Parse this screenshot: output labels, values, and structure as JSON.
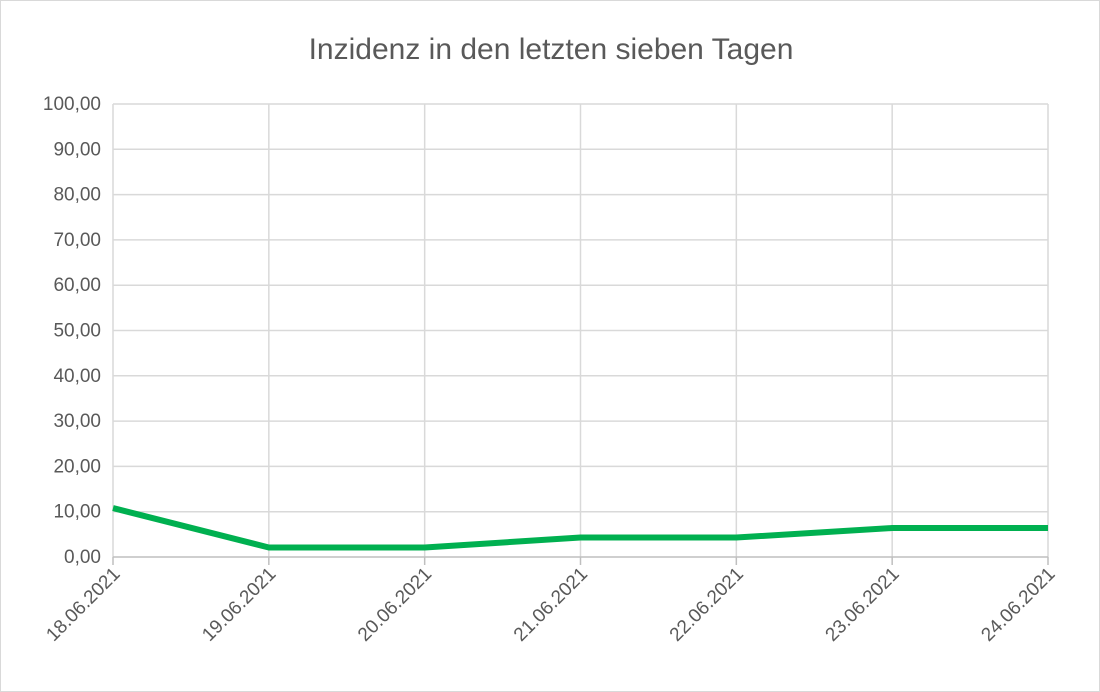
{
  "chart_data": {
    "type": "line",
    "title": "Inzidenz in den letzten sieben Tagen",
    "xlabel": "",
    "ylabel": "",
    "categories": [
      "18.06.2021",
      "19.06.2021",
      "20.06.2021",
      "21.06.2021",
      "22.06.2021",
      "23.06.2021",
      "24.06.2021"
    ],
    "series": [
      {
        "values": [
          10.8,
          2.1,
          2.1,
          4.3,
          4.3,
          6.4,
          6.4
        ],
        "color": "#00b050"
      }
    ],
    "ylim": [
      0,
      100
    ],
    "ytick_step": 10,
    "ytick_labels": [
      "0,00",
      "10,00",
      "20,00",
      "30,00",
      "40,00",
      "50,00",
      "60,00",
      "70,00",
      "80,00",
      "90,00",
      "100,00"
    ],
    "grid": true,
    "legend": "none"
  }
}
